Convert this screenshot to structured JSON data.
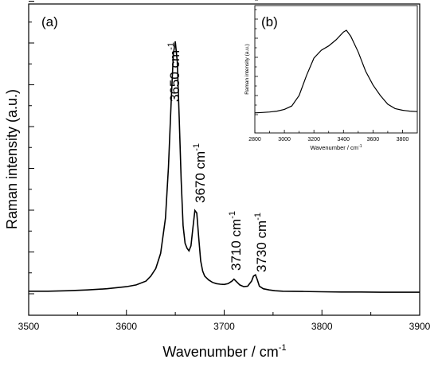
{
  "chart_data": [
    {
      "panel": "(a)",
      "type": "line",
      "xlabel": "Wavenumber / cm",
      "xlabel_sup": "-1",
      "ylabel": "Raman intensity (a.u.)",
      "xlim": [
        3500,
        3900
      ],
      "ylim": [
        0,
        1.05
      ],
      "xticks": [
        "3500",
        "3600",
        "3700",
        "3800",
        "3900"
      ],
      "grid": false,
      "annotations": [
        {
          "text": "3650 cm",
          "sup": "-1",
          "x": 3650
        },
        {
          "text": "3670 cm",
          "sup": "-1",
          "x": 3670
        },
        {
          "text": "3710 cm",
          "sup": "-1",
          "x": 3710
        },
        {
          "text": "3730 cm",
          "sup": "-1",
          "x": 3730
        }
      ],
      "series": [
        {
          "x": [
            3500,
            3520,
            3540,
            3560,
            3580,
            3600,
            3610,
            3620,
            3625,
            3630,
            3635,
            3640,
            3643,
            3646,
            3648,
            3650,
            3652,
            3654,
            3656,
            3658,
            3660,
            3662,
            3664,
            3666,
            3668,
            3670,
            3672,
            3674,
            3676,
            3678,
            3680,
            3684,
            3688,
            3692,
            3696,
            3700,
            3704,
            3708,
            3710,
            3712,
            3716,
            3720,
            3724,
            3728,
            3730,
            3732,
            3734,
            3736,
            3740,
            3746,
            3752,
            3760,
            3780,
            3800,
            3820,
            3840,
            3860,
            3880,
            3900
          ],
          "y": [
            0.01,
            0.01,
            0.012,
            0.015,
            0.02,
            0.028,
            0.035,
            0.05,
            0.07,
            0.1,
            0.16,
            0.3,
            0.5,
            0.78,
            0.95,
            1.0,
            0.92,
            0.7,
            0.45,
            0.27,
            0.2,
            0.18,
            0.17,
            0.19,
            0.26,
            0.33,
            0.32,
            0.22,
            0.13,
            0.09,
            0.07,
            0.055,
            0.045,
            0.04,
            0.038,
            0.037,
            0.04,
            0.05,
            0.058,
            0.05,
            0.035,
            0.028,
            0.03,
            0.05,
            0.07,
            0.075,
            0.055,
            0.03,
            0.02,
            0.015,
            0.012,
            0.01,
            0.009,
            0.008,
            0.007,
            0.007,
            0.006,
            0.006,
            0.006
          ]
        }
      ]
    },
    {
      "panel": "(b)",
      "type": "line",
      "xlabel": "Wavenumber / cm",
      "xlabel_sup": "-1",
      "ylabel": "Raman intensity (a.u.)",
      "xlim": [
        2800,
        3900
      ],
      "ylim": [
        0,
        1.05
      ],
      "xticks": [
        "2800",
        "3000",
        "3200",
        "3400",
        "3600",
        "3800"
      ],
      "grid": false,
      "series": [
        {
          "x": [
            2800,
            2850,
            2900,
            2950,
            3000,
            3050,
            3100,
            3150,
            3200,
            3250,
            3300,
            3350,
            3400,
            3420,
            3450,
            3500,
            3550,
            3600,
            3650,
            3700,
            3750,
            3800,
            3850,
            3900
          ],
          "y": [
            0.02,
            0.025,
            0.03,
            0.04,
            0.06,
            0.1,
            0.22,
            0.45,
            0.65,
            0.74,
            0.79,
            0.86,
            0.95,
            0.97,
            0.9,
            0.72,
            0.5,
            0.34,
            0.22,
            0.12,
            0.07,
            0.05,
            0.04,
            0.035
          ]
        }
      ]
    }
  ]
}
